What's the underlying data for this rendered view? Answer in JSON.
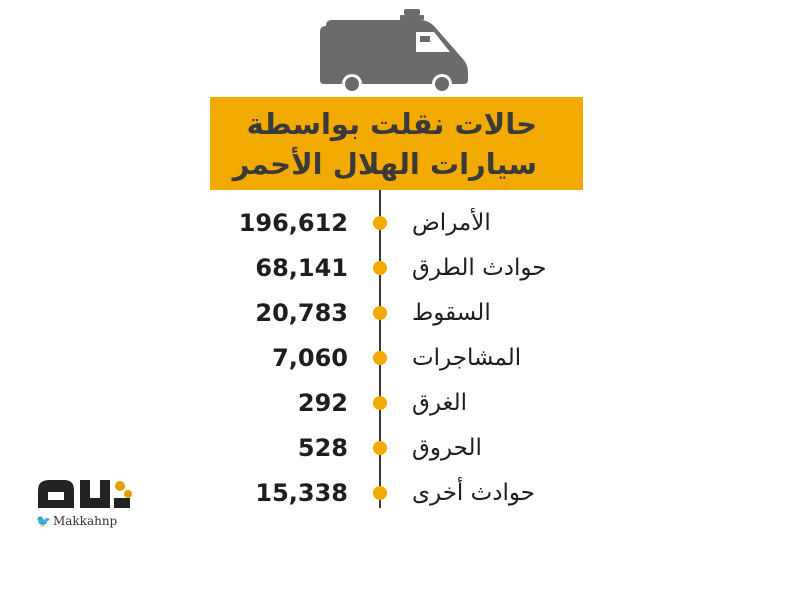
{
  "title": {
    "line1": "حالات نقلت بواسطة",
    "line2": "سيارات الهلال الأحمر"
  },
  "colors": {
    "accent": "#F2A900",
    "ambulance": "#6B6B6B",
    "text": "#1E1E1E"
  },
  "icons": {
    "header": "ambulance-icon",
    "brand_bird": "twitter-bird-icon"
  },
  "chart_data": {
    "type": "table",
    "title": "حالات نقلت بواسطة سيارات الهلال الأحمر",
    "categories": [
      "الأمراض",
      "حوادث الطرق",
      "السقوط",
      "المشاجرات",
      "الغرق",
      "الحروق",
      "حوادث أخرى"
    ],
    "values": [
      196612,
      68141,
      20783,
      7060,
      292,
      528,
      15338
    ],
    "value_labels": [
      "196,612",
      "68,141",
      "20,783",
      "7,060",
      "292",
      "528",
      "15,338"
    ]
  },
  "brand": {
    "logo_text": "مكة",
    "handle": "Makkahnp"
  }
}
